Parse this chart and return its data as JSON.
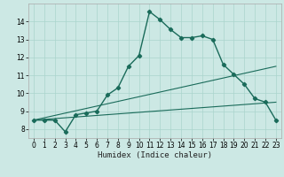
{
  "title": "",
  "xlabel": "Humidex (Indice chaleur)",
  "bg_color": "#cce8e4",
  "line_color": "#1a6b5a",
  "grid_color": "#aad4cc",
  "xlim": [
    -0.5,
    23.5
  ],
  "ylim": [
    7.5,
    15.0
  ],
  "xticks": [
    0,
    1,
    2,
    3,
    4,
    5,
    6,
    7,
    8,
    9,
    10,
    11,
    12,
    13,
    14,
    15,
    16,
    17,
    18,
    19,
    20,
    21,
    22,
    23
  ],
  "yticks": [
    8,
    9,
    10,
    11,
    12,
    13,
    14
  ],
  "line1_x": [
    0,
    1,
    2,
    3,
    4,
    5,
    6,
    7,
    8,
    9,
    10,
    11,
    12,
    13,
    14,
    15,
    16,
    17,
    18,
    19,
    20,
    21,
    22,
    23
  ],
  "line1_y": [
    8.5,
    8.5,
    8.5,
    7.85,
    8.8,
    8.9,
    9.0,
    9.9,
    10.3,
    11.5,
    12.1,
    14.55,
    14.1,
    13.55,
    13.1,
    13.1,
    13.2,
    13.0,
    11.6,
    11.05,
    10.5,
    9.7,
    9.5,
    8.5
  ],
  "line2_x": [
    0,
    23
  ],
  "line2_y": [
    8.5,
    9.5
  ],
  "line3_x": [
    0,
    23
  ],
  "line3_y": [
    8.5,
    11.5
  ],
  "figsize": [
    3.2,
    2.0
  ],
  "dpi": 100
}
